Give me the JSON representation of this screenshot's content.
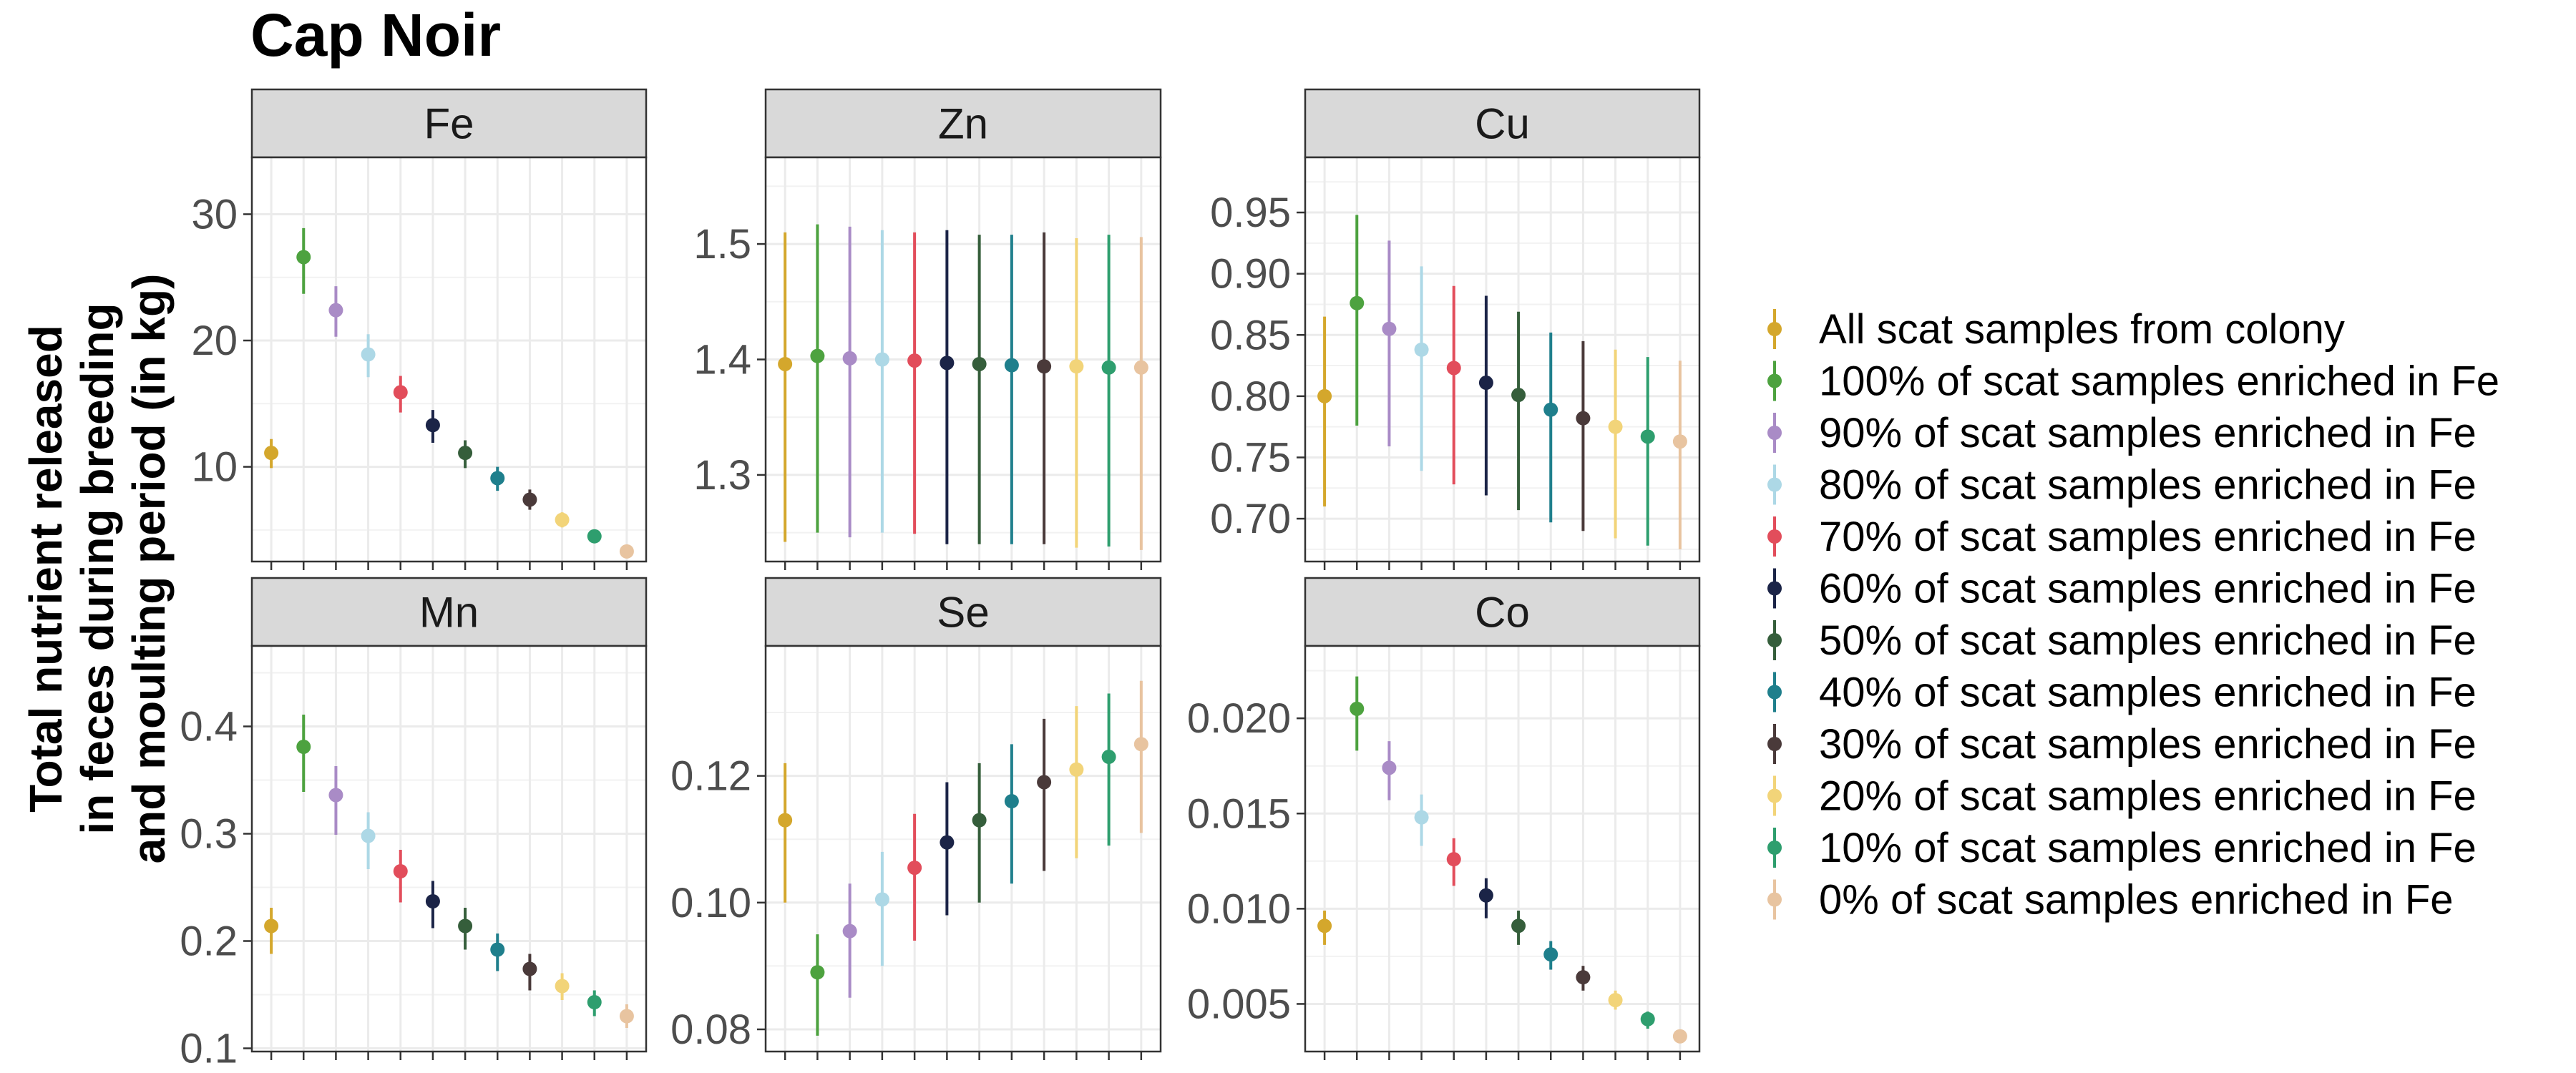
{
  "title": "Cap Noir",
  "y_axis_label_lines": [
    "Total nutrient released",
    "in feces during breeding",
    "and moulting period (in kg)"
  ],
  "legend": {
    "entries": [
      {
        "label": "All scat samples from colony",
        "color": "#D4A72C"
      },
      {
        "label": "100% of scat samples enriched in Fe",
        "color": "#4DA23F"
      },
      {
        "label": "90% of scat samples enriched in Fe",
        "color": "#A98BC6"
      },
      {
        "label": "80% of scat samples enriched in Fe",
        "color": "#ADD8E6"
      },
      {
        "label": "70% of scat samples enriched in Fe",
        "color": "#E24D5B"
      },
      {
        "label": "60% of scat samples enriched in Fe",
        "color": "#1B2447"
      },
      {
        "label": "50% of scat samples enriched in Fe",
        "color": "#355E3B"
      },
      {
        "label": "40% of scat samples enriched in Fe",
        "color": "#1F7F8C"
      },
      {
        "label": "30% of scat samples enriched in Fe",
        "color": "#4A3A3A"
      },
      {
        "label": "20% of scat samples enriched in Fe",
        "color": "#F2D479"
      },
      {
        "label": "10% of scat samples enriched in Fe",
        "color": "#2E9E6E"
      },
      {
        "label": "0% of scat samples enriched in Fe",
        "color": "#E8C4A0"
      }
    ]
  },
  "chart_data": [
    {
      "type": "scatter",
      "panel": "Fe",
      "ylim": [
        2.5,
        34.5
      ],
      "yticks": [
        10,
        20,
        30
      ],
      "ytick_labels": [
        "10",
        "20",
        "30"
      ],
      "values": [
        11.1,
        26.6,
        22.4,
        18.9,
        15.9,
        13.3,
        11.1,
        9.1,
        7.4,
        5.8,
        4.5,
        3.3
      ],
      "lower": [
        9.9,
        23.7,
        20.3,
        17.1,
        14.3,
        11.9,
        9.9,
        8.1,
        6.6,
        5.2,
        4.0,
        2.9
      ],
      "upper": [
        12.2,
        28.9,
        24.3,
        20.5,
        17.2,
        14.5,
        12.1,
        10.0,
        8.2,
        6.4,
        5.0,
        3.7
      ]
    },
    {
      "type": "scatter",
      "panel": "Zn",
      "ylim": [
        1.225,
        1.575
      ],
      "yticks": [
        1.3,
        1.4,
        1.5
      ],
      "ytick_labels": [
        "1.3",
        "1.4",
        "1.5"
      ],
      "values": [
        1.396,
        1.403,
        1.401,
        1.4,
        1.399,
        1.397,
        1.396,
        1.395,
        1.394,
        1.394,
        1.393,
        1.393
      ],
      "lower": [
        1.242,
        1.25,
        1.246,
        1.25,
        1.249,
        1.24,
        1.24,
        1.24,
        1.24,
        1.237,
        1.238,
        1.235
      ],
      "upper": [
        1.51,
        1.517,
        1.515,
        1.512,
        1.51,
        1.512,
        1.508,
        1.508,
        1.51,
        1.505,
        1.508,
        1.506
      ]
    },
    {
      "type": "scatter",
      "panel": "Cu",
      "ylim": [
        0.665,
        0.995
      ],
      "yticks": [
        0.7,
        0.75,
        0.8,
        0.85,
        0.9,
        0.95
      ],
      "ytick_labels": [
        "0.70",
        "0.75",
        "0.80",
        "0.85",
        "0.90",
        "0.95"
      ],
      "values": [
        0.8,
        0.876,
        0.855,
        0.838,
        0.823,
        0.811,
        0.801,
        0.789,
        0.782,
        0.775,
        0.767,
        0.763
      ],
      "lower": [
        0.71,
        0.776,
        0.759,
        0.739,
        0.728,
        0.719,
        0.707,
        0.697,
        0.69,
        0.684,
        0.678,
        0.675
      ],
      "upper": [
        0.865,
        0.948,
        0.927,
        0.906,
        0.89,
        0.882,
        0.869,
        0.852,
        0.845,
        0.838,
        0.832,
        0.829
      ]
    },
    {
      "type": "scatter",
      "panel": "Mn",
      "ylim": [
        0.097,
        0.475
      ],
      "yticks": [
        0.1,
        0.2,
        0.3,
        0.4
      ],
      "ytick_labels": [
        "0.1",
        "0.2",
        "0.3",
        "0.4"
      ],
      "values": [
        0.214,
        0.381,
        0.336,
        0.298,
        0.265,
        0.237,
        0.214,
        0.192,
        0.174,
        0.158,
        0.143,
        0.13
      ],
      "lower": [
        0.188,
        0.339,
        0.299,
        0.267,
        0.236,
        0.212,
        0.192,
        0.172,
        0.154,
        0.145,
        0.13,
        0.119
      ],
      "upper": [
        0.231,
        0.411,
        0.363,
        0.32,
        0.285,
        0.256,
        0.231,
        0.207,
        0.188,
        0.17,
        0.154,
        0.141
      ]
    },
    {
      "type": "scatter",
      "panel": "Se",
      "ylim": [
        0.0765,
        0.1405
      ],
      "yticks": [
        0.08,
        0.1,
        0.12
      ],
      "ytick_labels": [
        "0.08",
        "0.10",
        "0.12"
      ],
      "values": [
        0.113,
        0.089,
        0.0955,
        0.1005,
        0.1055,
        0.1095,
        0.113,
        0.116,
        0.119,
        0.121,
        0.123,
        0.125
      ],
      "lower": [
        0.1,
        0.079,
        0.085,
        0.09,
        0.094,
        0.098,
        0.1,
        0.103,
        0.105,
        0.107,
        0.109,
        0.111
      ],
      "upper": [
        0.122,
        0.095,
        0.103,
        0.108,
        0.114,
        0.119,
        0.122,
        0.125,
        0.129,
        0.131,
        0.133,
        0.135
      ]
    },
    {
      "type": "scatter",
      "panel": "Co",
      "ylim": [
        0.0025,
        0.0238
      ],
      "yticks": [
        0.005,
        0.01,
        0.015,
        0.02
      ],
      "ytick_labels": [
        "0.005",
        "0.010",
        "0.015",
        "0.020"
      ],
      "values": [
        0.0091,
        0.0205,
        0.0174,
        0.0148,
        0.0126,
        0.0107,
        0.0091,
        0.0076,
        0.0064,
        0.0052,
        0.0042,
        0.0033
      ],
      "lower": [
        0.0081,
        0.0183,
        0.0157,
        0.0133,
        0.0112,
        0.0095,
        0.0081,
        0.0068,
        0.0057,
        0.0047,
        0.0037,
        0.003
      ],
      "upper": [
        0.0099,
        0.0222,
        0.0188,
        0.016,
        0.0137,
        0.0116,
        0.0099,
        0.0083,
        0.007,
        0.0057,
        0.0046,
        0.0036
      ]
    }
  ]
}
